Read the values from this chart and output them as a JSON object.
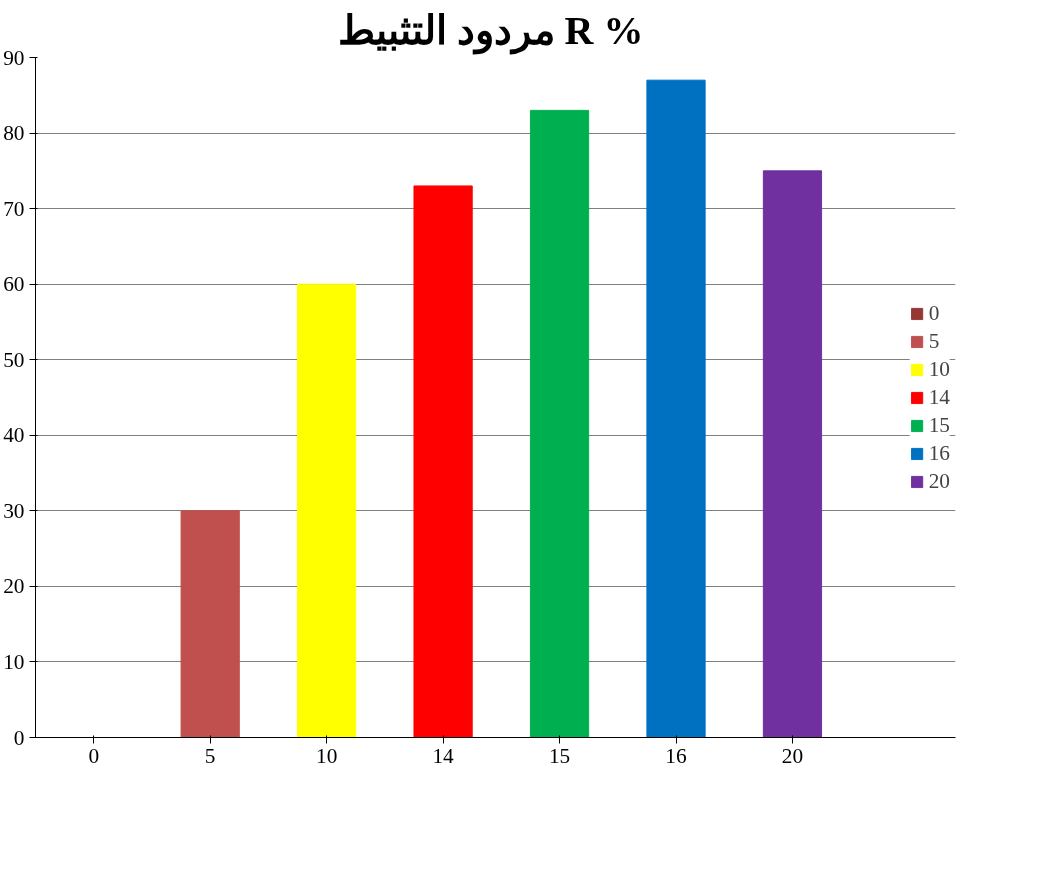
{
  "chart_data": {
    "type": "bar",
    "title": "مردود التثبيط  R %",
    "categories": [
      "0",
      "5",
      "10",
      "14",
      "15",
      "16",
      "20"
    ],
    "series": [
      {
        "name": "0",
        "color": "#953735",
        "values": [
          0,
          null,
          null,
          null,
          null,
          null,
          null
        ]
      },
      {
        "name": "5",
        "color": "#c0504d",
        "values": [
          null,
          30,
          null,
          null,
          null,
          null,
          null
        ]
      },
      {
        "name": "10",
        "color": "#ffff00",
        "values": [
          null,
          null,
          60,
          null,
          null,
          null,
          null
        ]
      },
      {
        "name": "14",
        "color": "#ff0000",
        "values": [
          null,
          null,
          null,
          73,
          null,
          null,
          null
        ]
      },
      {
        "name": "15",
        "color": "#00b050",
        "values": [
          null,
          null,
          null,
          null,
          83,
          null,
          null
        ]
      },
      {
        "name": "16",
        "color": "#0070c0",
        "values": [
          null,
          null,
          null,
          null,
          null,
          87,
          null
        ]
      },
      {
        "name": "20",
        "color": "#7030a0",
        "values": [
          null,
          null,
          null,
          null,
          null,
          null,
          75
        ]
      }
    ],
    "ylim": [
      0,
      90
    ],
    "yticks": [
      0,
      10,
      20,
      30,
      40,
      50,
      60,
      70,
      80,
      90
    ],
    "grid": "y",
    "legend": "right"
  }
}
